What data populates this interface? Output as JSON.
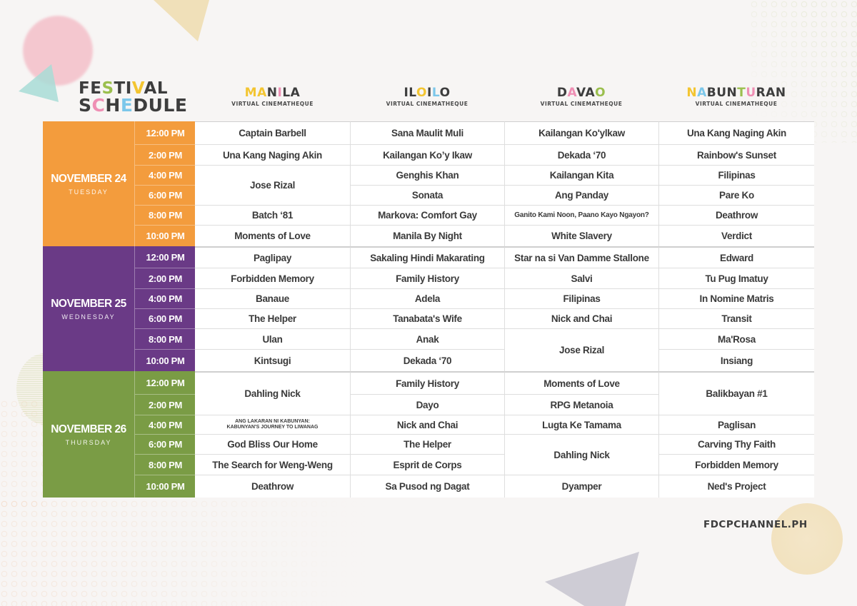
{
  "title": {
    "line1": [
      {
        "ch": "FE",
        "color": "#3d3d3d"
      },
      {
        "ch": "S",
        "color": "#9bbf4e"
      },
      {
        "ch": "TI",
        "color": "#3d3d3d"
      },
      {
        "ch": "V",
        "color": "#f3c531"
      },
      {
        "ch": "AL",
        "color": "#3d3d3d"
      }
    ],
    "line2": [
      {
        "ch": "S",
        "color": "#3d3d3d"
      },
      {
        "ch": "C",
        "color": "#ef8fb4"
      },
      {
        "ch": "H",
        "color": "#3d3d3d"
      },
      {
        "ch": "E",
        "color": "#7cc7ea"
      },
      {
        "ch": "DULE",
        "color": "#3d3d3d"
      }
    ],
    "text": "FESTIVAL SCHEDULE"
  },
  "locations": [
    {
      "name": "MANILA",
      "subtitle": "VIRTUAL CINEMATHEQUE",
      "letters": [
        {
          "ch": "M",
          "color": "#f3c531"
        },
        {
          "ch": "A",
          "color": "#f3c531"
        },
        {
          "ch": "N",
          "color": "#3d3d3d"
        },
        {
          "ch": "I",
          "color": "#ef8fb4"
        },
        {
          "ch": "LA",
          "color": "#3d3d3d"
        }
      ]
    },
    {
      "name": "ILOILO",
      "subtitle": "VIRTUAL CINEMATHEQUE",
      "letters": [
        {
          "ch": "IL",
          "color": "#3d3d3d"
        },
        {
          "ch": "O",
          "color": "#f3c531"
        },
        {
          "ch": "I",
          "color": "#3d3d3d"
        },
        {
          "ch": "L",
          "color": "#7cc7ea"
        },
        {
          "ch": "O",
          "color": "#3d3d3d"
        }
      ]
    },
    {
      "name": "DAVAO",
      "subtitle": "VIRTUAL CINEMATHEQUE",
      "letters": [
        {
          "ch": "D",
          "color": "#3d3d3d"
        },
        {
          "ch": "A",
          "color": "#ef8fb4"
        },
        {
          "ch": "VA",
          "color": "#3d3d3d"
        },
        {
          "ch": "O",
          "color": "#9bbf4e"
        }
      ]
    },
    {
      "name": "NABUNTURAN",
      "subtitle": "VIRTUAL CINEMATHEQUE",
      "letters": [
        {
          "ch": "N",
          "color": "#f3c531"
        },
        {
          "ch": "A",
          "color": "#7cc7ea"
        },
        {
          "ch": "BUN",
          "color": "#3d3d3d"
        },
        {
          "ch": "T",
          "color": "#9bbf4e"
        },
        {
          "ch": "U",
          "color": "#ef8fb4"
        },
        {
          "ch": "RAN",
          "color": "#3d3d3d"
        }
      ]
    }
  ],
  "times": [
    "12:00 PM",
    "2:00 PM",
    "4:00 PM",
    "6:00 PM",
    "8:00 PM",
    "10:00 PM"
  ],
  "days": [
    {
      "date": "NOVEMBER 24",
      "weekday": "TUESDAY",
      "color": "#f39c3d",
      "columns": [
        [
          {
            "title": "Captain Barbell",
            "span": 1
          },
          {
            "title": "Una Kang Naging Akin",
            "span": 1
          },
          {
            "title": "Jose Rizal",
            "span": 2
          },
          {
            "title": "Batch ‘81",
            "span": 1
          },
          {
            "title": "Moments of Love",
            "span": 1
          }
        ],
        [
          {
            "title": "Sana Maulit Muli",
            "span": 1
          },
          {
            "title": "Kailangan Ko’y Ikaw",
            "span": 1
          },
          {
            "title": "Genghis Khan",
            "span": 1
          },
          {
            "title": "Sonata",
            "span": 1
          },
          {
            "title": "Markova: Comfort Gay",
            "span": 1
          },
          {
            "title": "Manila By Night",
            "span": 1
          }
        ],
        [
          {
            "title": "Kailangan Ko'ylkaw",
            "span": 1
          },
          {
            "title": "Dekada ‘70",
            "span": 1
          },
          {
            "title": "Kailangan Kita",
            "span": 1
          },
          {
            "title": "Ang Panday",
            "span": 1
          },
          {
            "title": "Ganito Kami Noon, Paano Kayo Ngayon?",
            "span": 1,
            "size": "small"
          },
          {
            "title": "White Slavery",
            "span": 1
          }
        ],
        [
          {
            "title": "Una Kang Naging Akin",
            "span": 1
          },
          {
            "title": "Rainbow's Sunset",
            "span": 1
          },
          {
            "title": "Filipinas",
            "span": 1
          },
          {
            "title": "Pare Ko",
            "span": 1
          },
          {
            "title": "Deathrow",
            "span": 1
          },
          {
            "title": "Verdict",
            "span": 1
          }
        ]
      ]
    },
    {
      "date": "NOVEMBER 25",
      "weekday": "WEDNESDAY",
      "color": "#6a3a86",
      "columns": [
        [
          {
            "title": "Paglipay",
            "span": 1
          },
          {
            "title": "Forbidden Memory",
            "span": 1
          },
          {
            "title": "Banaue",
            "span": 1
          },
          {
            "title": "The Helper",
            "span": 1
          },
          {
            "title": "Ulan",
            "span": 1
          },
          {
            "title": "Kintsugi",
            "span": 1
          }
        ],
        [
          {
            "title": "Sakaling Hindi Makarating",
            "span": 1
          },
          {
            "title": "Family History",
            "span": 1
          },
          {
            "title": "Adela",
            "span": 1
          },
          {
            "title": "Tanabata's Wife",
            "span": 1
          },
          {
            "title": "Anak",
            "span": 1
          },
          {
            "title": "Dekada ‘70",
            "span": 1
          }
        ],
        [
          {
            "title": "Star na si Van Damme Stallone",
            "span": 1
          },
          {
            "title": "Salvi",
            "span": 1
          },
          {
            "title": "Filipinas",
            "span": 1
          },
          {
            "title": "Nick and Chai",
            "span": 1
          },
          {
            "title": "Jose Rizal",
            "span": 2
          }
        ],
        [
          {
            "title": "Edward",
            "span": 1
          },
          {
            "title": "Tu Pug Imatuy",
            "span": 1
          },
          {
            "title": "In Nomine Matris",
            "span": 1
          },
          {
            "title": "Transit",
            "span": 1
          },
          {
            "title": "Ma'Rosa",
            "span": 1
          },
          {
            "title": "Insiang",
            "span": 1
          }
        ]
      ]
    },
    {
      "date": "NOVEMBER 26",
      "weekday": "THURSDAY",
      "color": "#7a9c45",
      "columns": [
        [
          {
            "title": "Dahling Nick",
            "span": 2
          },
          {
            "title": "ANG LAKARAN NI KABUNYAN: KABUNYAN'S JOURNEY TO LIWANAG",
            "span": 1,
            "size": "tiny",
            "lines": [
              "ANG LAKARAN NI KABUNYAN:",
              "KABUNYAN'S JOURNEY TO LIWANAG"
            ]
          },
          {
            "title": "God Bliss Our Home",
            "span": 1
          },
          {
            "title": "The Search for Weng-Weng",
            "span": 1
          },
          {
            "title": "Deathrow",
            "span": 1
          }
        ],
        [
          {
            "title": "Family History",
            "span": 1
          },
          {
            "title": "Dayo",
            "span": 1
          },
          {
            "title": "Nick and Chai",
            "span": 1
          },
          {
            "title": "The Helper",
            "span": 1
          },
          {
            "title": "Esprit de Corps",
            "span": 1
          },
          {
            "title": "Sa Pusod ng Dagat",
            "span": 1
          }
        ],
        [
          {
            "title": "Moments of Love",
            "span": 1
          },
          {
            "title": "RPG Metanoia",
            "span": 1
          },
          {
            "title": "Lugta Ke Tamama",
            "span": 1
          },
          {
            "title": "Dahling Nick",
            "span": 2
          },
          {
            "title": "Dyamper",
            "span": 1
          }
        ],
        [
          {
            "title": "Balikbayan #1",
            "span": 2
          },
          {
            "title": "Paglisan",
            "span": 1
          },
          {
            "title": "Carving Thy Faith",
            "span": 1
          },
          {
            "title": "Forbidden Memory",
            "span": 1
          },
          {
            "title": "Ned's Project",
            "span": 1
          }
        ]
      ]
    }
  ],
  "footer": {
    "url": "FDCPCHANNEL.PH"
  }
}
